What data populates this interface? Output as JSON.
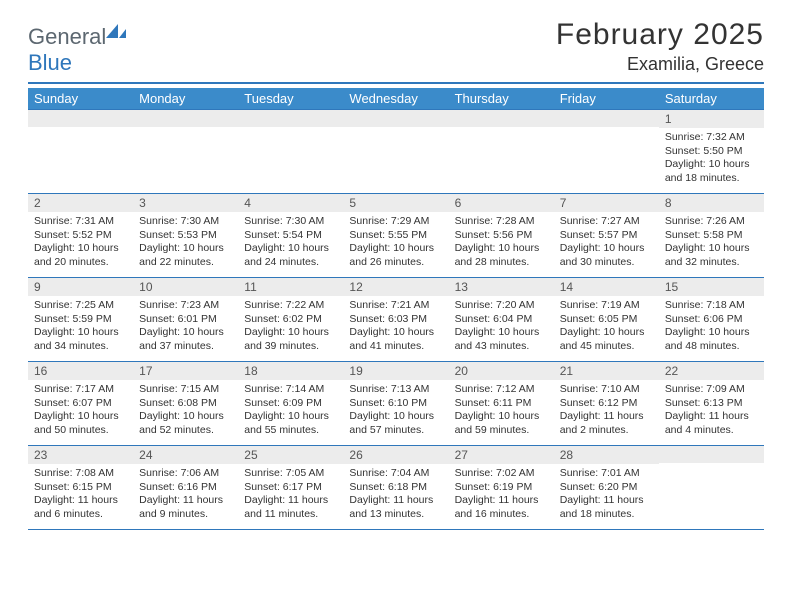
{
  "logo": {
    "general": "General",
    "blue": "Blue"
  },
  "title": "February 2025",
  "location": "Examilia, Greece",
  "colors": {
    "header_bg": "#3b8bca",
    "header_text": "#ffffff",
    "divider": "#2f77bb",
    "daynum_bg": "#ececec",
    "body_text": "#333333"
  },
  "weekdays": [
    "Sunday",
    "Monday",
    "Tuesday",
    "Wednesday",
    "Thursday",
    "Friday",
    "Saturday"
  ],
  "weeks": [
    [
      {
        "n": "",
        "sr": "",
        "ss": "",
        "dl": ""
      },
      {
        "n": "",
        "sr": "",
        "ss": "",
        "dl": ""
      },
      {
        "n": "",
        "sr": "",
        "ss": "",
        "dl": ""
      },
      {
        "n": "",
        "sr": "",
        "ss": "",
        "dl": ""
      },
      {
        "n": "",
        "sr": "",
        "ss": "",
        "dl": ""
      },
      {
        "n": "",
        "sr": "",
        "ss": "",
        "dl": ""
      },
      {
        "n": "1",
        "sr": "7:32 AM",
        "ss": "5:50 PM",
        "dl": "10 hours and 18 minutes."
      }
    ],
    [
      {
        "n": "2",
        "sr": "7:31 AM",
        "ss": "5:52 PM",
        "dl": "10 hours and 20 minutes."
      },
      {
        "n": "3",
        "sr": "7:30 AM",
        "ss": "5:53 PM",
        "dl": "10 hours and 22 minutes."
      },
      {
        "n": "4",
        "sr": "7:30 AM",
        "ss": "5:54 PM",
        "dl": "10 hours and 24 minutes."
      },
      {
        "n": "5",
        "sr": "7:29 AM",
        "ss": "5:55 PM",
        "dl": "10 hours and 26 minutes."
      },
      {
        "n": "6",
        "sr": "7:28 AM",
        "ss": "5:56 PM",
        "dl": "10 hours and 28 minutes."
      },
      {
        "n": "7",
        "sr": "7:27 AM",
        "ss": "5:57 PM",
        "dl": "10 hours and 30 minutes."
      },
      {
        "n": "8",
        "sr": "7:26 AM",
        "ss": "5:58 PM",
        "dl": "10 hours and 32 minutes."
      }
    ],
    [
      {
        "n": "9",
        "sr": "7:25 AM",
        "ss": "5:59 PM",
        "dl": "10 hours and 34 minutes."
      },
      {
        "n": "10",
        "sr": "7:23 AM",
        "ss": "6:01 PM",
        "dl": "10 hours and 37 minutes."
      },
      {
        "n": "11",
        "sr": "7:22 AM",
        "ss": "6:02 PM",
        "dl": "10 hours and 39 minutes."
      },
      {
        "n": "12",
        "sr": "7:21 AM",
        "ss": "6:03 PM",
        "dl": "10 hours and 41 minutes."
      },
      {
        "n": "13",
        "sr": "7:20 AM",
        "ss": "6:04 PM",
        "dl": "10 hours and 43 minutes."
      },
      {
        "n": "14",
        "sr": "7:19 AM",
        "ss": "6:05 PM",
        "dl": "10 hours and 45 minutes."
      },
      {
        "n": "15",
        "sr": "7:18 AM",
        "ss": "6:06 PM",
        "dl": "10 hours and 48 minutes."
      }
    ],
    [
      {
        "n": "16",
        "sr": "7:17 AM",
        "ss": "6:07 PM",
        "dl": "10 hours and 50 minutes."
      },
      {
        "n": "17",
        "sr": "7:15 AM",
        "ss": "6:08 PM",
        "dl": "10 hours and 52 minutes."
      },
      {
        "n": "18",
        "sr": "7:14 AM",
        "ss": "6:09 PM",
        "dl": "10 hours and 55 minutes."
      },
      {
        "n": "19",
        "sr": "7:13 AM",
        "ss": "6:10 PM",
        "dl": "10 hours and 57 minutes."
      },
      {
        "n": "20",
        "sr": "7:12 AM",
        "ss": "6:11 PM",
        "dl": "10 hours and 59 minutes."
      },
      {
        "n": "21",
        "sr": "7:10 AM",
        "ss": "6:12 PM",
        "dl": "11 hours and 2 minutes."
      },
      {
        "n": "22",
        "sr": "7:09 AM",
        "ss": "6:13 PM",
        "dl": "11 hours and 4 minutes."
      }
    ],
    [
      {
        "n": "23",
        "sr": "7:08 AM",
        "ss": "6:15 PM",
        "dl": "11 hours and 6 minutes."
      },
      {
        "n": "24",
        "sr": "7:06 AM",
        "ss": "6:16 PM",
        "dl": "11 hours and 9 minutes."
      },
      {
        "n": "25",
        "sr": "7:05 AM",
        "ss": "6:17 PM",
        "dl": "11 hours and 11 minutes."
      },
      {
        "n": "26",
        "sr": "7:04 AM",
        "ss": "6:18 PM",
        "dl": "11 hours and 13 minutes."
      },
      {
        "n": "27",
        "sr": "7:02 AM",
        "ss": "6:19 PM",
        "dl": "11 hours and 16 minutes."
      },
      {
        "n": "28",
        "sr": "7:01 AM",
        "ss": "6:20 PM",
        "dl": "11 hours and 18 minutes."
      },
      {
        "n": "",
        "sr": "",
        "ss": "",
        "dl": ""
      }
    ]
  ],
  "labels": {
    "sunrise": "Sunrise:",
    "sunset": "Sunset:",
    "daylight": "Daylight:"
  }
}
